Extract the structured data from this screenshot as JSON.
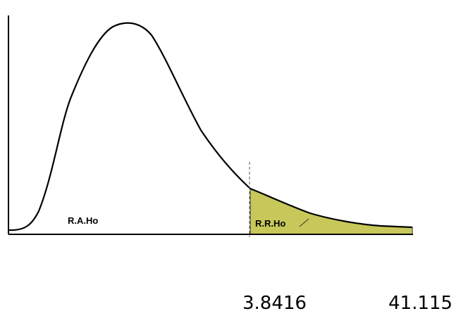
{
  "diagram": {
    "acceptance_region_label": "R.A.Ho",
    "rejection_region_label": "R.R.Ho",
    "critical_value": "3.8416",
    "max_value": "41.115"
  },
  "colors": {
    "curve": "#000000",
    "axes": "#000000",
    "rejection_fill": "#c8c85a",
    "critical_line": "#555555"
  }
}
